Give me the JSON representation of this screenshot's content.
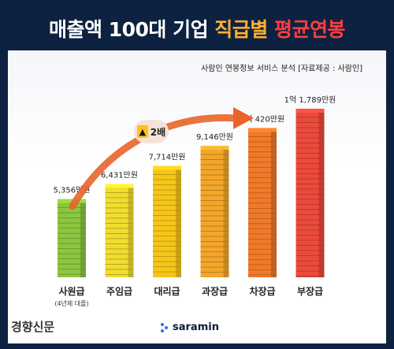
{
  "title": {
    "part1": "매출액 100대 기업 ",
    "part2": "직급별 ",
    "part3": "평균연봉"
  },
  "subtitle": "사람인 연봉정보 서비스 분석 [자료제공 : 사람인]",
  "badge_label": "2배",
  "footer": {
    "source_logo_text": "경향신문",
    "brand": "saramin"
  },
  "colors": {
    "bg_navy": "#0d2240",
    "arrow": "#e8642a",
    "brand_dot": "#2a6df4"
  },
  "chart_data": {
    "type": "bar",
    "unit": "만원",
    "categories": [
      "사원급",
      "주임급",
      "대리급",
      "과장급",
      "차장급",
      "부장급"
    ],
    "category_notes": [
      "(4년제 대졸)",
      "",
      "",
      "",
      "",
      ""
    ],
    "values": [
      5356,
      6431,
      7714,
      9146,
      10420,
      11789
    ],
    "value_labels": [
      "5,356만원",
      "6,431만원",
      "7,714만원",
      "9,146만원",
      "1억 420만원",
      "1억 1,789만원"
    ],
    "bar_colors": [
      "#8cc63f",
      "#f2dc2f",
      "#f5c518",
      "#f4a62b",
      "#f07a2a",
      "#ec4a3c"
    ]
  }
}
